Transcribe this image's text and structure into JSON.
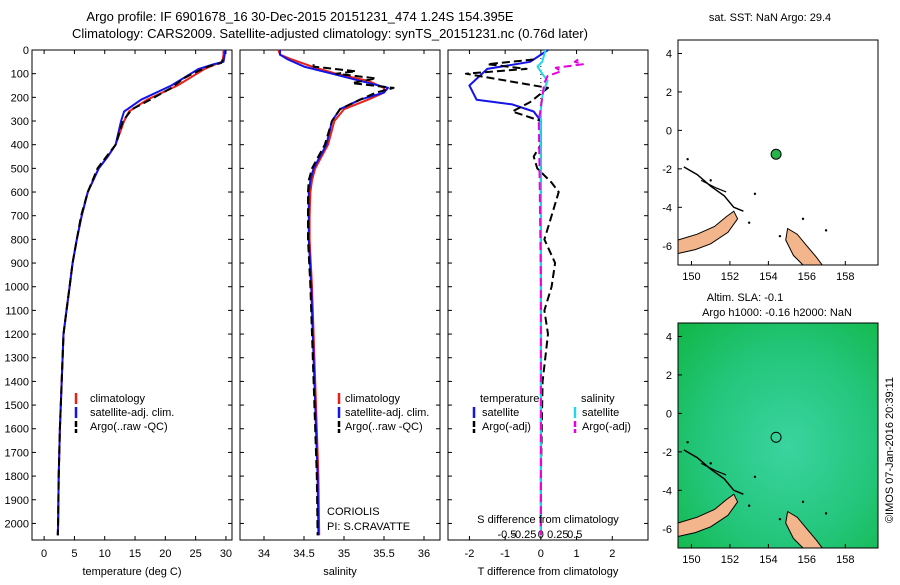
{
  "header": {
    "line1": "Argo profile: IF 6901678_16 30-Dec-2015 20151231_474 1.24S 154.395E",
    "line2": "Climatology: CARS2009. Satellite-adjusted climatology: synTS_20151231.nc (0.76d later)"
  },
  "colors": {
    "clim": "#e8211b",
    "sat": "#1414e6",
    "argo": "#000000",
    "sal_sat": "#22d8e8",
    "sal_argo": "#e800e0",
    "land": "#f2b58c",
    "ocean": "#23cc78"
  },
  "chart_data": [
    {
      "id": "temperature",
      "type": "line",
      "xlabel": "temperature (deg C)",
      "xlim": [
        -2,
        31
      ],
      "xticks": [
        0,
        5,
        10,
        15,
        20,
        25,
        30
      ],
      "xtick_labels": [
        "0",
        "5",
        "10",
        "15",
        "20",
        "25",
        "30"
      ],
      "ylim": [
        2070,
        0
      ],
      "yticks": [
        0,
        100,
        200,
        300,
        400,
        500,
        600,
        700,
        800,
        900,
        1000,
        1100,
        1200,
        1300,
        1400,
        1500,
        1600,
        1700,
        1800,
        1900,
        2000
      ],
      "legend": [
        "climatology",
        "satellite-adj. clim.",
        "Argo(..raw -QC)"
      ],
      "series": [
        {
          "key": "clim",
          "name": "climatology",
          "style": "solid",
          "x": [
            29.6,
            29.6,
            29.4,
            28.3,
            26.5,
            22.0,
            17.0,
            14.0,
            13.2,
            11.8,
            10.5,
            9.0,
            7.2,
            6.2,
            5.4,
            4.7,
            4.2,
            3.7,
            3.2,
            2.9,
            2.6,
            2.4,
            2.3,
            2.25
          ],
          "y": [
            0,
            20,
            50,
            60,
            80,
            150,
            210,
            260,
            300,
            400,
            450,
            500,
            600,
            700,
            800,
            900,
            1000,
            1100,
            1200,
            1400,
            1600,
            1800,
            2000,
            2050
          ]
        },
        {
          "key": "sat",
          "name": "satellite-adj. clim.",
          "style": "solid",
          "x": [
            29.8,
            29.8,
            29.6,
            28.0,
            25.5,
            21.0,
            16.0,
            13.2,
            12.7,
            11.8,
            10.5,
            9.0,
            7.2,
            6.2,
            5.4,
            4.7,
            4.2,
            3.7,
            3.2,
            2.9,
            2.6,
            2.4,
            2.3,
            2.25
          ],
          "y": [
            0,
            20,
            50,
            60,
            80,
            150,
            210,
            260,
            300,
            400,
            450,
            500,
            600,
            700,
            800,
            900,
            1000,
            1100,
            1200,
            1400,
            1600,
            1800,
            2000,
            2050
          ]
        },
        {
          "key": "argo",
          "name": "Argo(..raw -QC)",
          "style": "dash",
          "x": [
            29.5,
            29.2,
            27.0,
            24.5,
            23.0,
            21.0,
            17.5,
            14.5,
            13.0,
            11.8,
            10.3,
            8.8,
            7.2,
            6.1,
            5.4,
            4.7,
            4.2,
            3.7,
            3.2,
            2.9,
            2.6,
            2.4,
            2.3,
            2.25
          ],
          "y": [
            40,
            55,
            70,
            100,
            120,
            160,
            210,
            250,
            300,
            400,
            450,
            500,
            600,
            700,
            800,
            900,
            1000,
            1100,
            1200,
            1400,
            1600,
            1800,
            2000,
            2050
          ]
        }
      ]
    },
    {
      "id": "salinity",
      "type": "line",
      "xlabel": "salinity",
      "xlim": [
        33.7,
        36.2
      ],
      "xticks": [
        34,
        34.5,
        35,
        35.5,
        36
      ],
      "xtick_labels": [
        "34",
        "34.5",
        "35",
        "35.5",
        "36"
      ],
      "ylim": [
        2070,
        0
      ],
      "legend": [
        "climatology",
        "satellite-adj. clim.",
        "Argo(..raw -QC)"
      ],
      "annotation": [
        "CORIOLIS",
        "PI: S.CRAVATTE"
      ],
      "series": [
        {
          "key": "clim",
          "name": "climatology",
          "style": "solid",
          "x": [
            34.18,
            34.2,
            34.35,
            34.6,
            34.9,
            35.3,
            35.5,
            35.5,
            35.3,
            35.0,
            34.88,
            34.8,
            34.72,
            34.64,
            34.6,
            34.58,
            34.57,
            34.57,
            34.6,
            34.62,
            34.64,
            34.66,
            34.68,
            34.69
          ],
          "y": [
            0,
            20,
            40,
            70,
            100,
            130,
            160,
            180,
            210,
            250,
            300,
            400,
            450,
            500,
            550,
            600,
            700,
            800,
            1000,
            1200,
            1400,
            1600,
            1800,
            2050
          ]
        },
        {
          "key": "sat",
          "name": "satellite-adj. clim.",
          "style": "solid",
          "x": [
            34.2,
            34.2,
            34.3,
            34.5,
            34.85,
            35.2,
            35.55,
            35.5,
            35.2,
            34.95,
            34.85,
            34.78,
            34.7,
            34.62,
            34.58,
            34.56,
            34.56,
            34.56,
            34.59,
            34.61,
            34.63,
            34.65,
            34.67,
            34.68
          ],
          "y": [
            0,
            20,
            40,
            70,
            100,
            130,
            160,
            180,
            210,
            250,
            300,
            400,
            450,
            500,
            550,
            600,
            700,
            800,
            1000,
            1200,
            1400,
            1600,
            1800,
            2050
          ]
        },
        {
          "key": "argo",
          "name": "Argo(..raw -QC)",
          "style": "dash",
          "x": [
            34.62,
            34.62,
            35.15,
            34.9,
            35.4,
            35.1,
            35.62,
            35.4,
            35.2,
            34.95,
            34.85,
            34.76,
            34.68,
            34.6,
            34.56,
            34.55,
            34.55,
            34.55,
            34.58,
            34.6,
            34.62,
            34.64,
            34.66,
            34.67
          ],
          "y": [
            60,
            70,
            90,
            100,
            120,
            140,
            160,
            180,
            210,
            250,
            300,
            400,
            450,
            500,
            550,
            600,
            700,
            800,
            1000,
            1200,
            1400,
            1600,
            1800,
            2050
          ]
        }
      ]
    },
    {
      "id": "difference",
      "type": "line",
      "xlabel": "T difference from climatology",
      "xlabel_top": "S difference from climatology",
      "xlim": [
        -2.6,
        3.0
      ],
      "xticks": [
        -2,
        -1,
        0,
        1,
        2
      ],
      "xtick_labels": [
        "-2",
        "-1",
        "0",
        "1",
        "2"
      ],
      "sticks": [
        -0.5,
        -0.25,
        0,
        0.25,
        0.5
      ],
      "stick_labels": [
        "-0.5",
        "-0.25",
        "0",
        "0.25",
        "0.5"
      ],
      "ylim": [
        2070,
        0
      ],
      "legend_headers": [
        "temperature",
        "salinity"
      ],
      "legend": [
        "satellite",
        "Argo(-adj)",
        "satellite",
        "Argo(-adj)"
      ],
      "series": [
        {
          "key": "sat",
          "name": "T satellite",
          "style": "solid",
          "x": [
            0.2,
            -0.3,
            -1.5,
            -2.0,
            -1.8,
            -0.8,
            -0.2,
            0,
            0,
            0,
            0,
            0
          ],
          "y": [
            0,
            50,
            80,
            150,
            210,
            230,
            260,
            300,
            500,
            1000,
            1500,
            2050
          ]
        },
        {
          "key": "argo",
          "name": "T Argo(-adj)",
          "style": "dash",
          "x": [
            -0.2,
            -1.5,
            -0.4,
            -2.1,
            0.2,
            -0.3,
            -0.8,
            0,
            0,
            -0.2,
            -0.1,
            0.3,
            0.5,
            0.3,
            0.1,
            0.4,
            0.3,
            0.1,
            0.2,
            0.05,
            0,
            0
          ],
          "y": [
            40,
            60,
            80,
            100,
            160,
            220,
            260,
            300,
            400,
            450,
            500,
            560,
            600,
            700,
            800,
            900,
            1000,
            1100,
            1200,
            1400,
            1800,
            2050
          ]
        },
        {
          "key": "sal_sat",
          "name": "S satellite",
          "style": "solid",
          "x": [
            0.07,
            0.02,
            -0.05,
            0.02,
            0.1,
            0.03,
            0,
            0,
            0,
            0,
            0,
            0
          ],
          "y": [
            0,
            50,
            70,
            100,
            130,
            180,
            250,
            300,
            600,
            1000,
            1500,
            2050
          ]
        },
        {
          "key": "sal_argo",
          "name": "S Argo(-adj)",
          "style": "dash",
          "x": [
            0.55,
            0.5,
            0.62,
            0.22,
            0.3,
            0.1,
            0.05,
            0.02,
            -0.03,
            -0.02,
            0,
            0
          ],
          "y": [
            40,
            50,
            60,
            75,
            90,
            110,
            140,
            200,
            300,
            500,
            1000,
            2050
          ]
        }
      ]
    }
  ],
  "maps": {
    "sst": {
      "title": "sat. SST: NaN Argo: 29.4",
      "xlim": [
        149.3,
        159.7
      ],
      "ylim": [
        -7,
        4.7
      ],
      "xticks": [
        150,
        152,
        154,
        156,
        158
      ],
      "yticks": [
        4,
        2,
        0,
        -2,
        -4,
        -6
      ],
      "float": [
        154.4,
        -1.24
      ]
    },
    "sla": {
      "title": "Altim. SLA: -0.1",
      "subtitle": "Argo h1000: -0.16 h2000: NaN",
      "xlim": [
        149.3,
        159.7
      ],
      "ylim": [
        -7,
        4.7
      ],
      "xticks": [
        150,
        152,
        154,
        156,
        158
      ],
      "yticks": [
        4,
        2,
        0,
        -2,
        -4,
        -6
      ],
      "float": [
        154.4,
        -1.24
      ]
    },
    "credit": "©IMOS 07-Jan-2016 20:39:11"
  }
}
